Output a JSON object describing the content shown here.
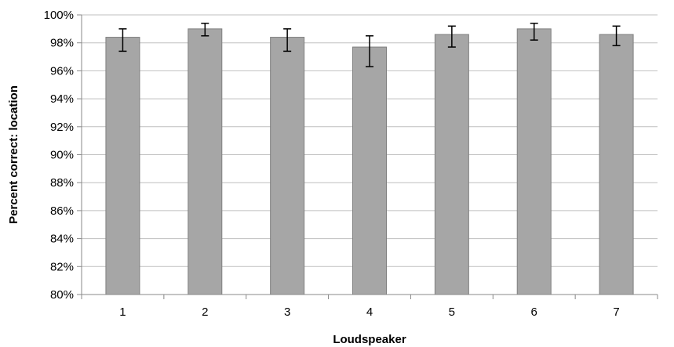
{
  "chart_data": {
    "type": "bar",
    "title": "",
    "xlabel": "Loudspeaker",
    "ylabel": "Percent correct: location",
    "categories": [
      "1",
      "2",
      "3",
      "4",
      "5",
      "6",
      "7"
    ],
    "values": [
      98.4,
      99.0,
      98.4,
      97.7,
      98.6,
      99.0,
      98.6
    ],
    "error_high": [
      99.0,
      99.4,
      99.0,
      98.5,
      99.2,
      99.4,
      99.2
    ],
    "error_low": [
      97.4,
      98.5,
      97.4,
      96.3,
      97.7,
      98.2,
      97.8
    ],
    "ylim": [
      80,
      100
    ],
    "ytick_labels": [
      "80%",
      "82%",
      "84%",
      "86%",
      "88%",
      "90%",
      "92%",
      "94%",
      "96%",
      "98%",
      "100%"
    ],
    "grid": true,
    "colors": {
      "bar_fill": "#a6a6a6",
      "bar_stroke": "#7f7f7f",
      "grid": "#bfbfbf",
      "axis": "#888888",
      "error_bar": "#000000"
    }
  }
}
